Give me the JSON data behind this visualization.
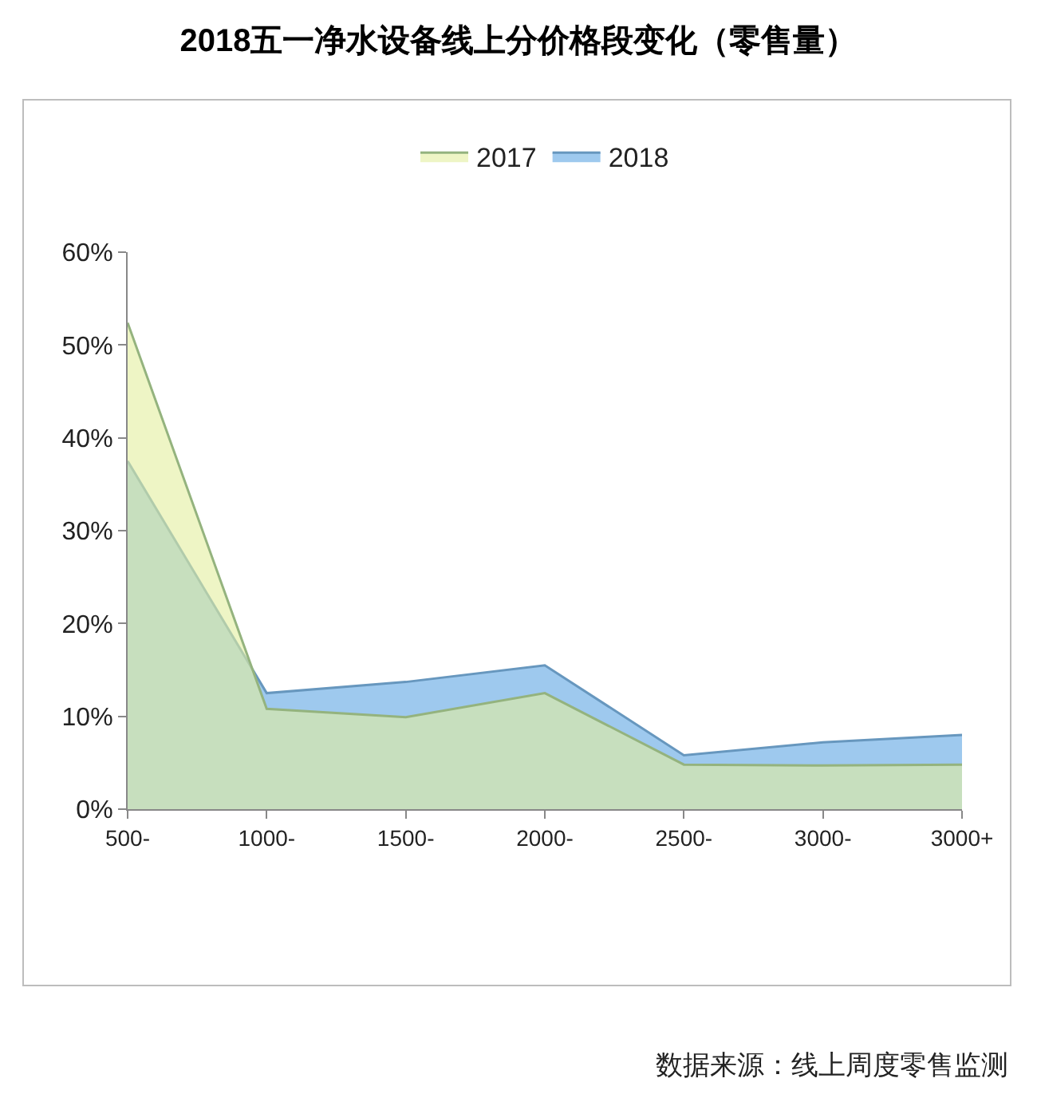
{
  "chart_data": {
    "type": "area",
    "title": "2018五一净水设备线上分价格段变化（零售量）",
    "annotations": [
      "数据来源：线上周度零售监测"
    ],
    "categories": [
      "500-",
      "1000-",
      "1500-",
      "2000-",
      "2500-",
      "3000-",
      "3000+"
    ],
    "series": [
      {
        "name": "2017",
        "color": "#e3ee9e",
        "values": [
          52.4,
          10.8,
          9.9,
          12.5,
          4.8,
          4.7,
          4.8
        ]
      },
      {
        "name": "2018",
        "color": "#9ec9ee",
        "values": [
          37.5,
          12.5,
          13.7,
          15.5,
          5.8,
          7.2,
          8.0
        ]
      }
    ],
    "ylim": [
      0,
      60
    ],
    "yticks": [
      {
        "value": 0,
        "label": "0%"
      },
      {
        "value": 10,
        "label": "10%"
      },
      {
        "value": 20,
        "label": "20%"
      },
      {
        "value": 30,
        "label": "30%"
      },
      {
        "value": 40,
        "label": "40%"
      },
      {
        "value": 50,
        "label": "50%"
      },
      {
        "value": 60,
        "label": "60%"
      }
    ],
    "grid": false,
    "legend": "top"
  }
}
